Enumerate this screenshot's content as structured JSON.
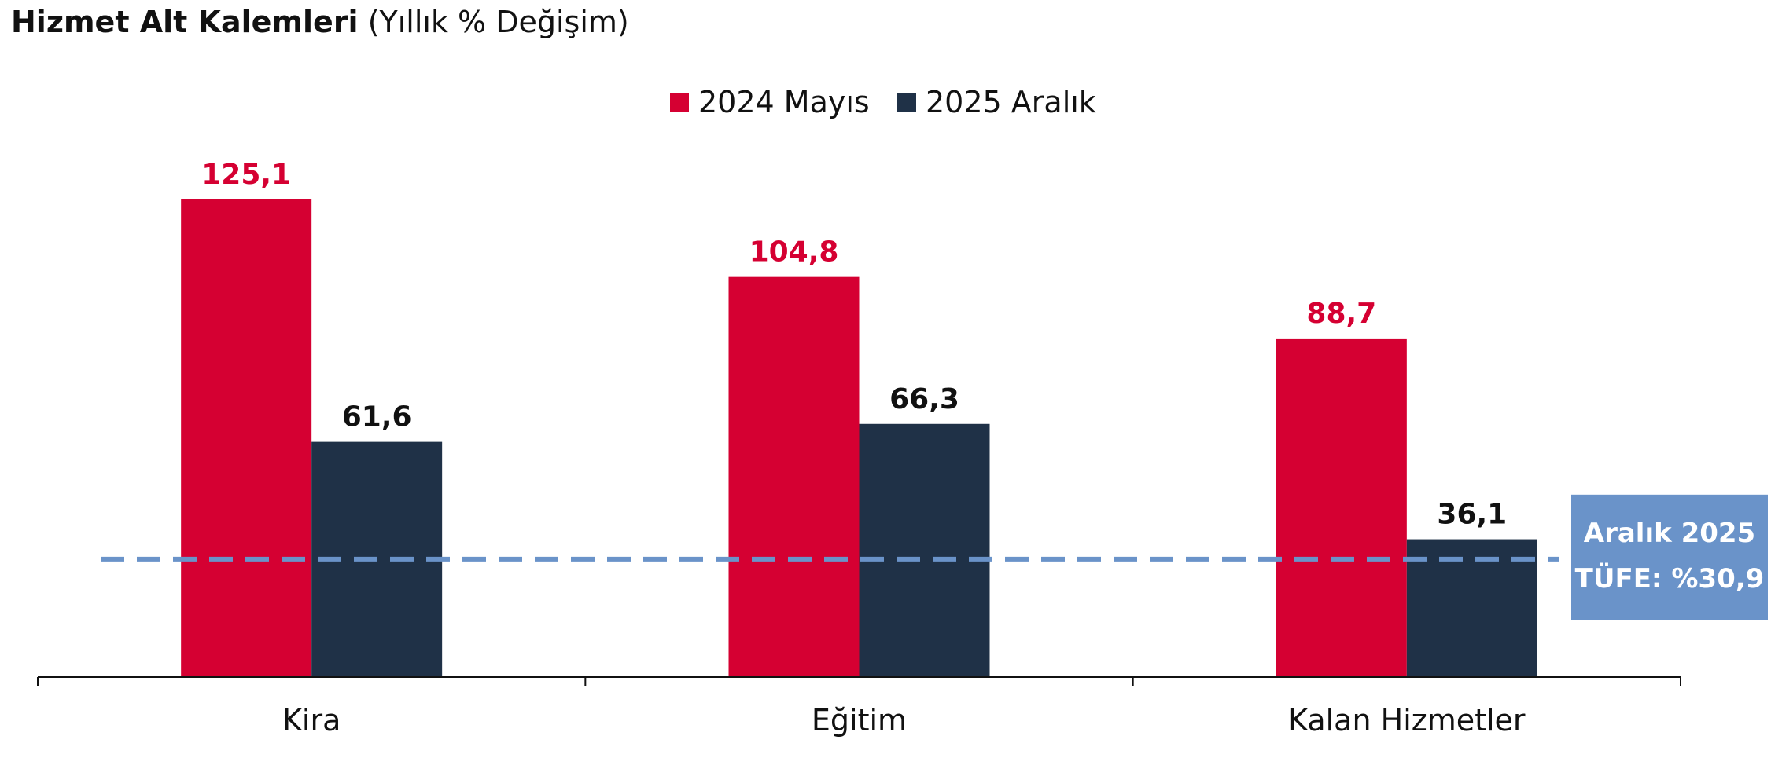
{
  "chart_data": {
    "type": "bar",
    "title": "Hizmet Alt Kalemleri",
    "subtitle": "(Yıllık % Değişim)",
    "categories": [
      "Kira",
      "Eğitim",
      "Kalan Hizmetler"
    ],
    "series": [
      {
        "name": "2024 Mayıs",
        "values": [
          125.1,
          104.8,
          88.7
        ],
        "labels": [
          "125,1",
          "104,8",
          "88,7"
        ],
        "color": "#D50032",
        "label_color": "#D50032"
      },
      {
        "name": "2025 Aralık",
        "values": [
          61.6,
          66.3,
          36.1
        ],
        "labels": [
          "61,6",
          "66,3",
          "36,1"
        ],
        "color": "#1F3147",
        "label_color": "#111111"
      }
    ],
    "reference_line": {
      "value": 30.9,
      "label_line1": "Aralık 2025",
      "label_line2": "TÜFE: %30,9",
      "color": "#6A93C9",
      "box_color": "#6A93C9",
      "text_color": "#FFFFFF"
    },
    "ylim": [
      0,
      125.1
    ],
    "xlabel": "",
    "ylabel": "",
    "legend_position": "top-center",
    "grid": false
  }
}
